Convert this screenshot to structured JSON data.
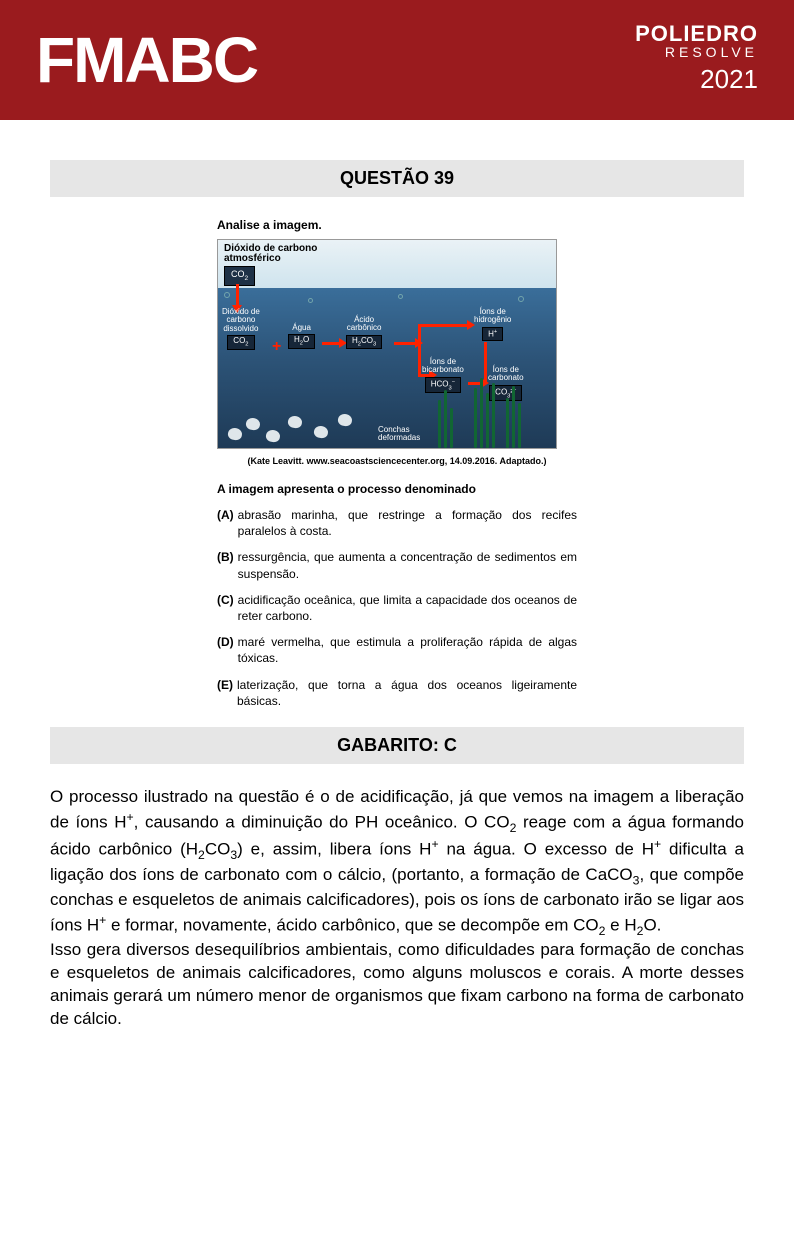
{
  "header": {
    "exam": "FMABC",
    "brand_line1": "POLIEDRO",
    "brand_line2": "RESOLVE",
    "year": "2021",
    "bg_color": "#9a1b1e"
  },
  "question_bar": "QUESTÃO 39",
  "lead": "Analise a imagem.",
  "diagram": {
    "title_line1": "Dióxido de carbono",
    "title_line2": "atmosférico",
    "chip_atm": "CO₂",
    "nodes": {
      "co2_diss": {
        "label": "Dióxido de\ncarbono\ndissolvido",
        "chip": "CO₂"
      },
      "agua": {
        "label": "Água",
        "chip": "H₂O"
      },
      "acido": {
        "label": "Ácido\ncarbônico",
        "chip": "H₂CO₃"
      },
      "bicarb": {
        "label": "Íons de\nbicarbonato",
        "chip": "HCO₃⁻"
      },
      "h": {
        "label": "Íons de\nhidrogênio",
        "chip": "H⁺"
      },
      "carb": {
        "label": "Íons de\ncarbonato",
        "chip": "CO₃²⁻"
      }
    },
    "conchas_label": "Conchas\ndeformadas",
    "colors": {
      "sky_top": "#eaf2f6",
      "sky_bottom": "#cfe4ee",
      "ocean_top": "#3a6e9a",
      "ocean_bottom": "#1e3a56",
      "arrow": "#ff2200",
      "chip_bg": "#162638"
    }
  },
  "source": "(Kate Leavitt. www.seacoastsciencecenter.org, 14.09.2016. Adaptado.)",
  "stem": "A imagem apresenta o processo denominado",
  "options": [
    {
      "letter": "(A)",
      "text": "abrasão marinha, que restringe a formação dos recifes paralelos à costa."
    },
    {
      "letter": "(B)",
      "text": "ressurgência, que aumenta a concentração de sedimentos em suspensão."
    },
    {
      "letter": "(C)",
      "text": "acidificação oceânica, que limita a capacidade dos oceanos de reter carbono."
    },
    {
      "letter": "(D)",
      "text": "maré vermelha, que estimula a proliferação rápida de algas tóxicas."
    },
    {
      "letter": "(E)",
      "text": "laterização, que torna a água dos oceanos ligeiramente básicas."
    }
  ],
  "gabarito_bar": "GABARITO: C",
  "explanation_html": "O processo ilustrado na questão é o de acidificação, já que vemos na imagem a liberação de íons H⁺, causando a diminuição do PH oceânico. O CO₂ reage com a água formando ácido carbônico (H₂CO₃) e, assim, libera íons H⁺ na água. O excesso de H⁺ dificulta a ligação dos íons de carbonato com o cálcio, (portanto, a formação de CaCO₃, que compõe conchas e esqueletos de animais calcificadores), pois os íons de carbonato irão se ligar aos íons H⁺ e formar, novamente, ácido carbônico, que se decompõe em CO₂ e H₂O.\nIsso gera diversos desequilíbrios ambientais, como dificuldades para formação de conchas e esqueletos de animais calcificadores, como alguns moluscos e corais. A morte desses animais gerará um número menor de organismos que fixam carbono na forma de carbonato de cálcio."
}
